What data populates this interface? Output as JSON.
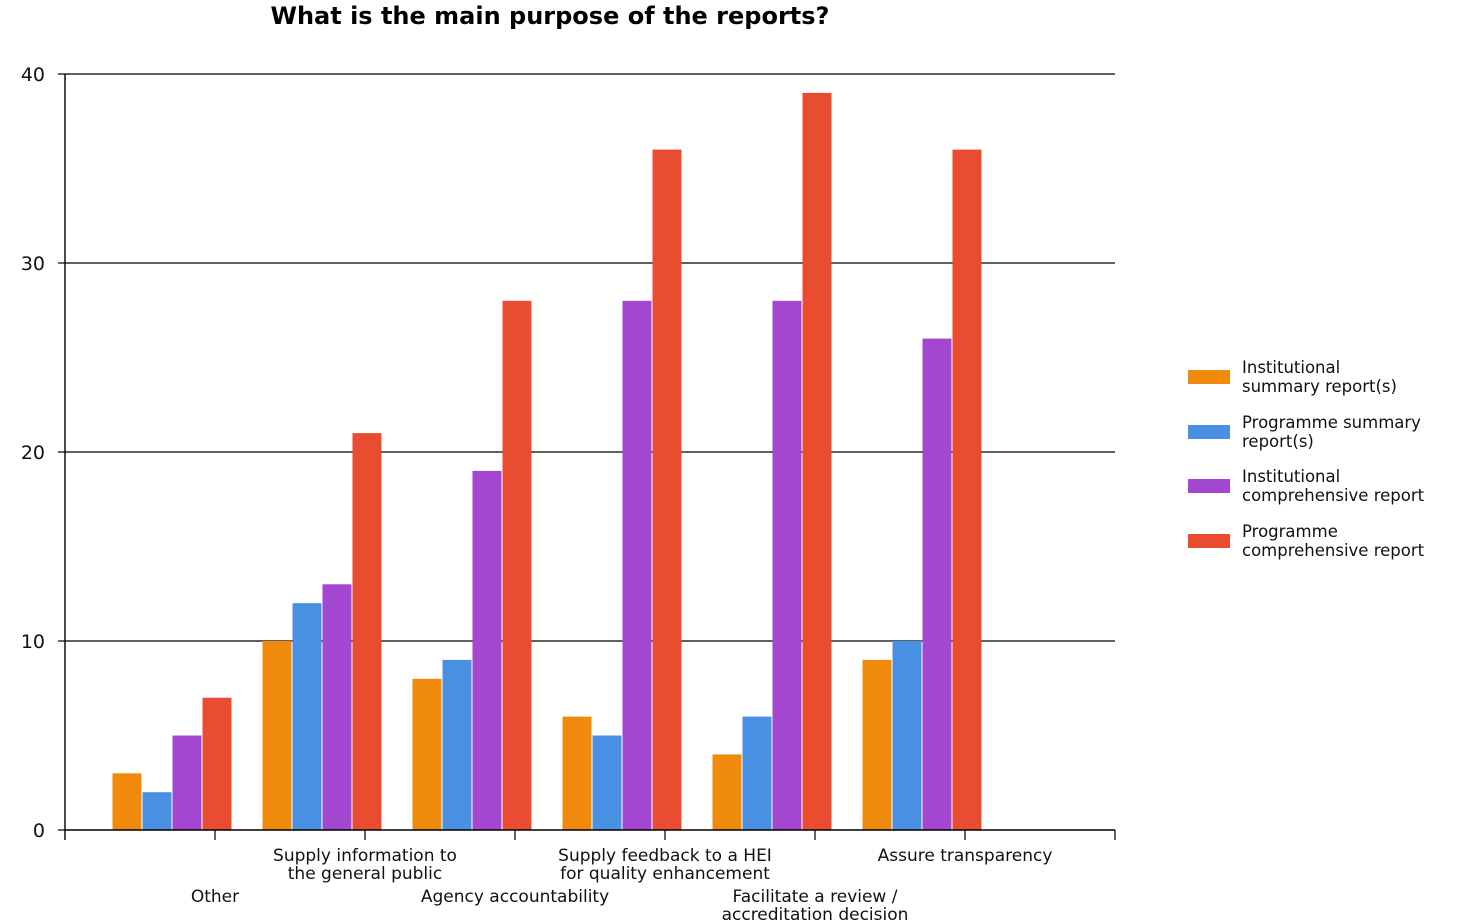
{
  "chart_data": {
    "type": "bar",
    "title": "What is the main purpose of the reports?",
    "xlabel": "",
    "ylabel": "",
    "ylim": [
      0,
      40
    ],
    "yticks": [
      0,
      10,
      20,
      30,
      40
    ],
    "grid": true,
    "legend_position": "right",
    "categories": [
      "Other",
      "Supply information to the general public",
      "Agency accountability",
      "Supply feedback to a HEI for quality enhancement",
      "Facilitate a review / accreditation decision",
      "Assure transparency"
    ],
    "category_label_lines": [
      [
        "Other"
      ],
      [
        "Supply information to",
        "the general public"
      ],
      [
        "Agency accountability"
      ],
      [
        "Supply feedback to a HEI",
        "for quality enhancement"
      ],
      [
        "Facilitate a review /",
        "accreditation decision"
      ],
      [
        "Assure transparency"
      ]
    ],
    "series": [
      {
        "name": "Institutional summary report(s)",
        "color": "#f08a0c",
        "values": [
          3,
          10,
          8,
          6,
          4,
          9
        ]
      },
      {
        "name": "Programme summary report(s)",
        "color": "#4a90e2",
        "values": [
          2,
          12,
          9,
          5,
          6,
          10
        ]
      },
      {
        "name": "Institutional comprehensive report",
        "color": "#a346d0",
        "values": [
          5,
          13,
          19,
          28,
          28,
          26
        ]
      },
      {
        "name": "Programme comprehensive report",
        "color": "#ea4c32",
        "values": [
          7,
          21,
          28,
          36,
          39,
          36
        ]
      }
    ]
  },
  "legend": {
    "items": [
      {
        "label_lines": [
          "Institutional",
          "summary report(s)"
        ],
        "color": "#f08a0c"
      },
      {
        "label_lines": [
          "Programme summary",
          "report(s)"
        ],
        "color": "#4a90e2"
      },
      {
        "label_lines": [
          "Institutional",
          "comprehensive report"
        ],
        "color": "#a346d0"
      },
      {
        "label_lines": [
          "Programme",
          "comprehensive report"
        ],
        "color": "#ea4c32"
      }
    ]
  }
}
